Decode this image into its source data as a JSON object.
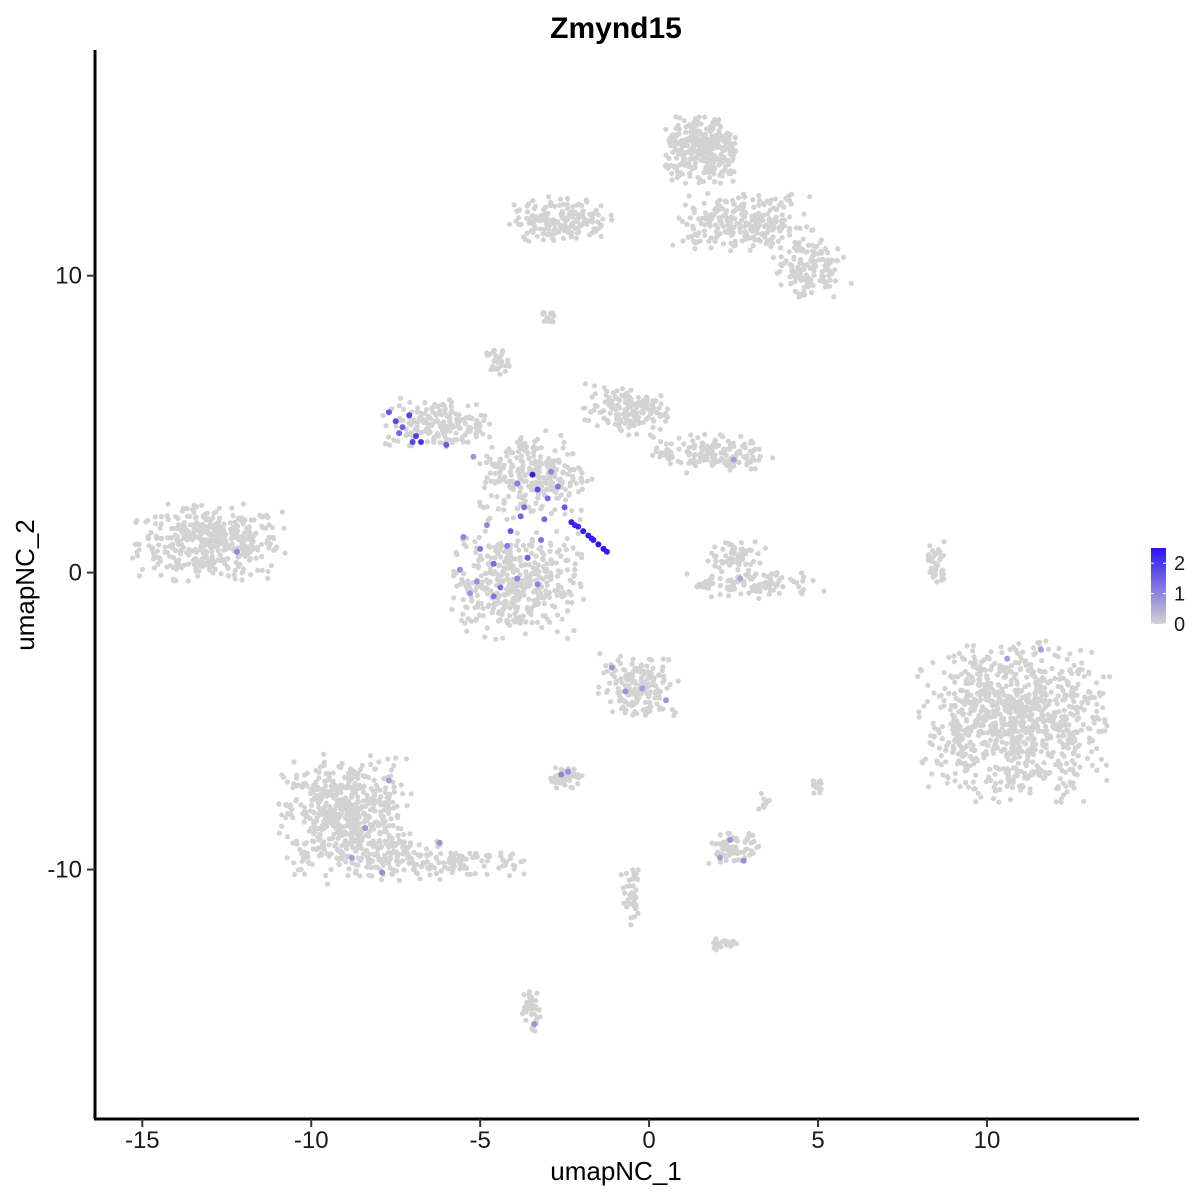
{
  "chart_data": {
    "type": "scatter",
    "title": "Zmynd15",
    "xlabel": "umapNC_1",
    "ylabel": "umapNC_2",
    "xlim": [
      -16.4,
      14.5
    ],
    "ylim": [
      -18.4,
      17.6
    ],
    "xticks": [
      -15,
      -10,
      -5,
      0,
      5,
      10
    ],
    "xtick_labels": [
      "-15",
      "-10",
      "-5",
      "0",
      "5",
      "10"
    ],
    "yticks": [
      -10,
      0,
      10
    ],
    "ytick_labels": [
      "-10",
      "0",
      "10"
    ],
    "grid": false,
    "legend": {
      "placement": "right",
      "type": "colorbar",
      "labels": [
        "2",
        "1",
        "0"
      ],
      "range": [
        0,
        2.5
      ],
      "low_color": "#d3d3d3",
      "high_color": "#2a14f2"
    },
    "background_color": "#d3d3d3",
    "clusters": [
      {
        "cx": -13,
        "cy": 1,
        "rx": 2.1,
        "ry": 1.2,
        "n": 420
      },
      {
        "cx": -9.0,
        "cy": -8.2,
        "rx": 1.8,
        "ry": 1.9,
        "n": 600
      },
      {
        "cx": -7.2,
        "cy": -9.6,
        "rx": 1.6,
        "ry": 0.7,
        "n": 120
      },
      {
        "cx": -5.3,
        "cy": -9.8,
        "rx": 1.6,
        "ry": 0.5,
        "n": 70
      },
      {
        "cx": -4.0,
        "cy": -0.4,
        "rx": 1.9,
        "ry": 1.7,
        "n": 420
      },
      {
        "cx": -3.4,
        "cy": 3.3,
        "rx": 1.6,
        "ry": 1.4,
        "n": 260
      },
      {
        "cx": -6.3,
        "cy": 5.0,
        "rx": 1.5,
        "ry": 0.8,
        "n": 170
      },
      {
        "cx": -4.5,
        "cy": 7.1,
        "rx": 0.35,
        "ry": 0.45,
        "n": 30
      },
      {
        "cx": -0.7,
        "cy": 5.5,
        "rx": 1.2,
        "ry": 0.8,
        "n": 150
      },
      {
        "cx": 1.8,
        "cy": 4.0,
        "rx": 1.7,
        "ry": 0.6,
        "n": 160
      },
      {
        "cx": -2.6,
        "cy": 11.9,
        "rx": 1.4,
        "ry": 0.7,
        "n": 180
      },
      {
        "cx": 1.6,
        "cy": 14.2,
        "rx": 1.1,
        "ry": 1.1,
        "n": 320
      },
      {
        "cx": 2.8,
        "cy": 11.8,
        "rx": 2.0,
        "ry": 0.9,
        "n": 260
      },
      {
        "cx": 4.7,
        "cy": 10.2,
        "rx": 1.0,
        "ry": 1.0,
        "n": 140
      },
      {
        "cx": 10.8,
        "cy": -5.0,
        "rx": 2.6,
        "ry": 2.5,
        "n": 950
      },
      {
        "cx": -0.3,
        "cy": -3.8,
        "rx": 1.1,
        "ry": 1.0,
        "n": 170
      },
      {
        "cx": 2.6,
        "cy": 0.6,
        "rx": 0.8,
        "ry": 0.5,
        "n": 60
      },
      {
        "cx": 3.1,
        "cy": -0.4,
        "rx": 1.9,
        "ry": 0.45,
        "n": 110
      },
      {
        "cx": 8.5,
        "cy": 0.3,
        "rx": 0.25,
        "ry": 0.7,
        "n": 40
      },
      {
        "cx": -2.5,
        "cy": -6.9,
        "rx": 0.5,
        "ry": 0.35,
        "n": 45
      },
      {
        "cx": 2.5,
        "cy": -9.3,
        "rx": 0.7,
        "ry": 0.5,
        "n": 70
      },
      {
        "cx": -3.5,
        "cy": -14.7,
        "rx": 0.3,
        "ry": 0.7,
        "n": 40
      },
      {
        "cx": -0.5,
        "cy": -11.0,
        "rx": 0.3,
        "ry": 1.0,
        "n": 40
      },
      {
        "cx": 2.2,
        "cy": -12.5,
        "rx": 0.5,
        "ry": 0.2,
        "n": 25
      },
      {
        "cx": 5.0,
        "cy": -7.2,
        "rx": 0.2,
        "ry": 0.3,
        "n": 14
      },
      {
        "cx": 3.4,
        "cy": -7.7,
        "rx": 0.15,
        "ry": 0.3,
        "n": 8
      },
      {
        "cx": -3.0,
        "cy": 8.6,
        "rx": 0.3,
        "ry": 0.4,
        "n": 15
      }
    ],
    "expressing_cells": [
      {
        "x": -2.3,
        "y": 1.7,
        "v": 2.3
      },
      {
        "x": -2.1,
        "y": 1.55,
        "v": 2.3
      },
      {
        "x": -1.95,
        "y": 1.4,
        "v": 2.4
      },
      {
        "x": -1.8,
        "y": 1.25,
        "v": 2.4
      },
      {
        "x": -1.65,
        "y": 1.1,
        "v": 2.4
      },
      {
        "x": -1.5,
        "y": 0.95,
        "v": 2.5
      },
      {
        "x": -1.35,
        "y": 0.8,
        "v": 2.5
      },
      {
        "x": -1.25,
        "y": 0.7,
        "v": 2.4
      },
      {
        "x": -2.2,
        "y": 1.6,
        "v": 2.2
      },
      {
        "x": -1.7,
        "y": 1.15,
        "v": 2.3
      },
      {
        "x": -3.45,
        "y": 3.3,
        "v": 2.4
      },
      {
        "x": -3.3,
        "y": 2.8,
        "v": 1.8
      },
      {
        "x": -3.0,
        "y": 2.5,
        "v": 1.4
      },
      {
        "x": -2.7,
        "y": 2.9,
        "v": 1.2
      },
      {
        "x": -3.7,
        "y": 2.2,
        "v": 1.3
      },
      {
        "x": -2.5,
        "y": 2.2,
        "v": 1.6
      },
      {
        "x": -3.1,
        "y": 1.8,
        "v": 1.4
      },
      {
        "x": -2.9,
        "y": 3.4,
        "v": 1.0
      },
      {
        "x": -3.9,
        "y": 3.0,
        "v": 1.1
      },
      {
        "x": -7.7,
        "y": 5.4,
        "v": 1.6
      },
      {
        "x": -7.5,
        "y": 5.1,
        "v": 1.8
      },
      {
        "x": -7.3,
        "y": 4.9,
        "v": 1.5
      },
      {
        "x": -7.1,
        "y": 5.3,
        "v": 1.9
      },
      {
        "x": -6.9,
        "y": 4.6,
        "v": 2.0
      },
      {
        "x": -6.75,
        "y": 4.4,
        "v": 2.1
      },
      {
        "x": -7.0,
        "y": 4.4,
        "v": 1.8
      },
      {
        "x": -7.4,
        "y": 4.7,
        "v": 1.4
      },
      {
        "x": -6.0,
        "y": 4.3,
        "v": 1.6
      },
      {
        "x": -5.5,
        "y": 1.2,
        "v": 1.0
      },
      {
        "x": -5.0,
        "y": 0.8,
        "v": 1.2
      },
      {
        "x": -4.6,
        "y": 0.3,
        "v": 1.4
      },
      {
        "x": -4.2,
        "y": 0.9,
        "v": 1.1
      },
      {
        "x": -3.9,
        "y": -0.2,
        "v": 1.0
      },
      {
        "x": -4.4,
        "y": -0.5,
        "v": 1.3
      },
      {
        "x": -5.1,
        "y": -0.3,
        "v": 0.9
      },
      {
        "x": -3.6,
        "y": 0.5,
        "v": 1.5
      },
      {
        "x": -4.1,
        "y": 1.4,
        "v": 1.6
      },
      {
        "x": -4.8,
        "y": 1.6,
        "v": 1.0
      },
      {
        "x": -5.6,
        "y": 0.1,
        "v": 0.9
      },
      {
        "x": -3.3,
        "y": -0.4,
        "v": 1.0
      },
      {
        "x": -4.6,
        "y": -0.8,
        "v": 1.2
      },
      {
        "x": -5.3,
        "y": -0.7,
        "v": 0.8
      },
      {
        "x": -3.2,
        "y": 1.1,
        "v": 1.3
      },
      {
        "x": -3.8,
        "y": 1.9,
        "v": 1.4
      },
      {
        "x": -12.2,
        "y": 0.7,
        "v": 1.0
      },
      {
        "x": -8.4,
        "y": -8.6,
        "v": 0.8
      },
      {
        "x": -7.9,
        "y": -10.1,
        "v": 0.9
      },
      {
        "x": -8.8,
        "y": -9.6,
        "v": 0.7
      },
      {
        "x": -7.7,
        "y": -7.0,
        "v": 0.7
      },
      {
        "x": -6.2,
        "y": -9.1,
        "v": 0.8
      },
      {
        "x": -1.1,
        "y": -3.2,
        "v": 0.8
      },
      {
        "x": -0.7,
        "y": -4.0,
        "v": 0.9
      },
      {
        "x": -0.2,
        "y": -3.9,
        "v": 0.7
      },
      {
        "x": 0.5,
        "y": -4.3,
        "v": 0.8
      },
      {
        "x": -2.6,
        "y": -6.8,
        "v": 1.0
      },
      {
        "x": -2.4,
        "y": -6.7,
        "v": 0.9
      },
      {
        "x": 2.4,
        "y": -9.0,
        "v": 0.8
      },
      {
        "x": 2.8,
        "y": -9.7,
        "v": 0.9
      },
      {
        "x": 2.1,
        "y": -9.6,
        "v": 0.7
      },
      {
        "x": -3.4,
        "y": -15.2,
        "v": 0.8
      },
      {
        "x": 10.6,
        "y": -2.9,
        "v": 0.7
      },
      {
        "x": 11.6,
        "y": -2.6,
        "v": 0.7
      },
      {
        "x": 2.5,
        "y": 3.8,
        "v": 0.7
      },
      {
        "x": -5.2,
        "y": 3.9,
        "v": 0.8
      },
      {
        "x": 2.7,
        "y": -0.2,
        "v": 0.6
      }
    ]
  }
}
